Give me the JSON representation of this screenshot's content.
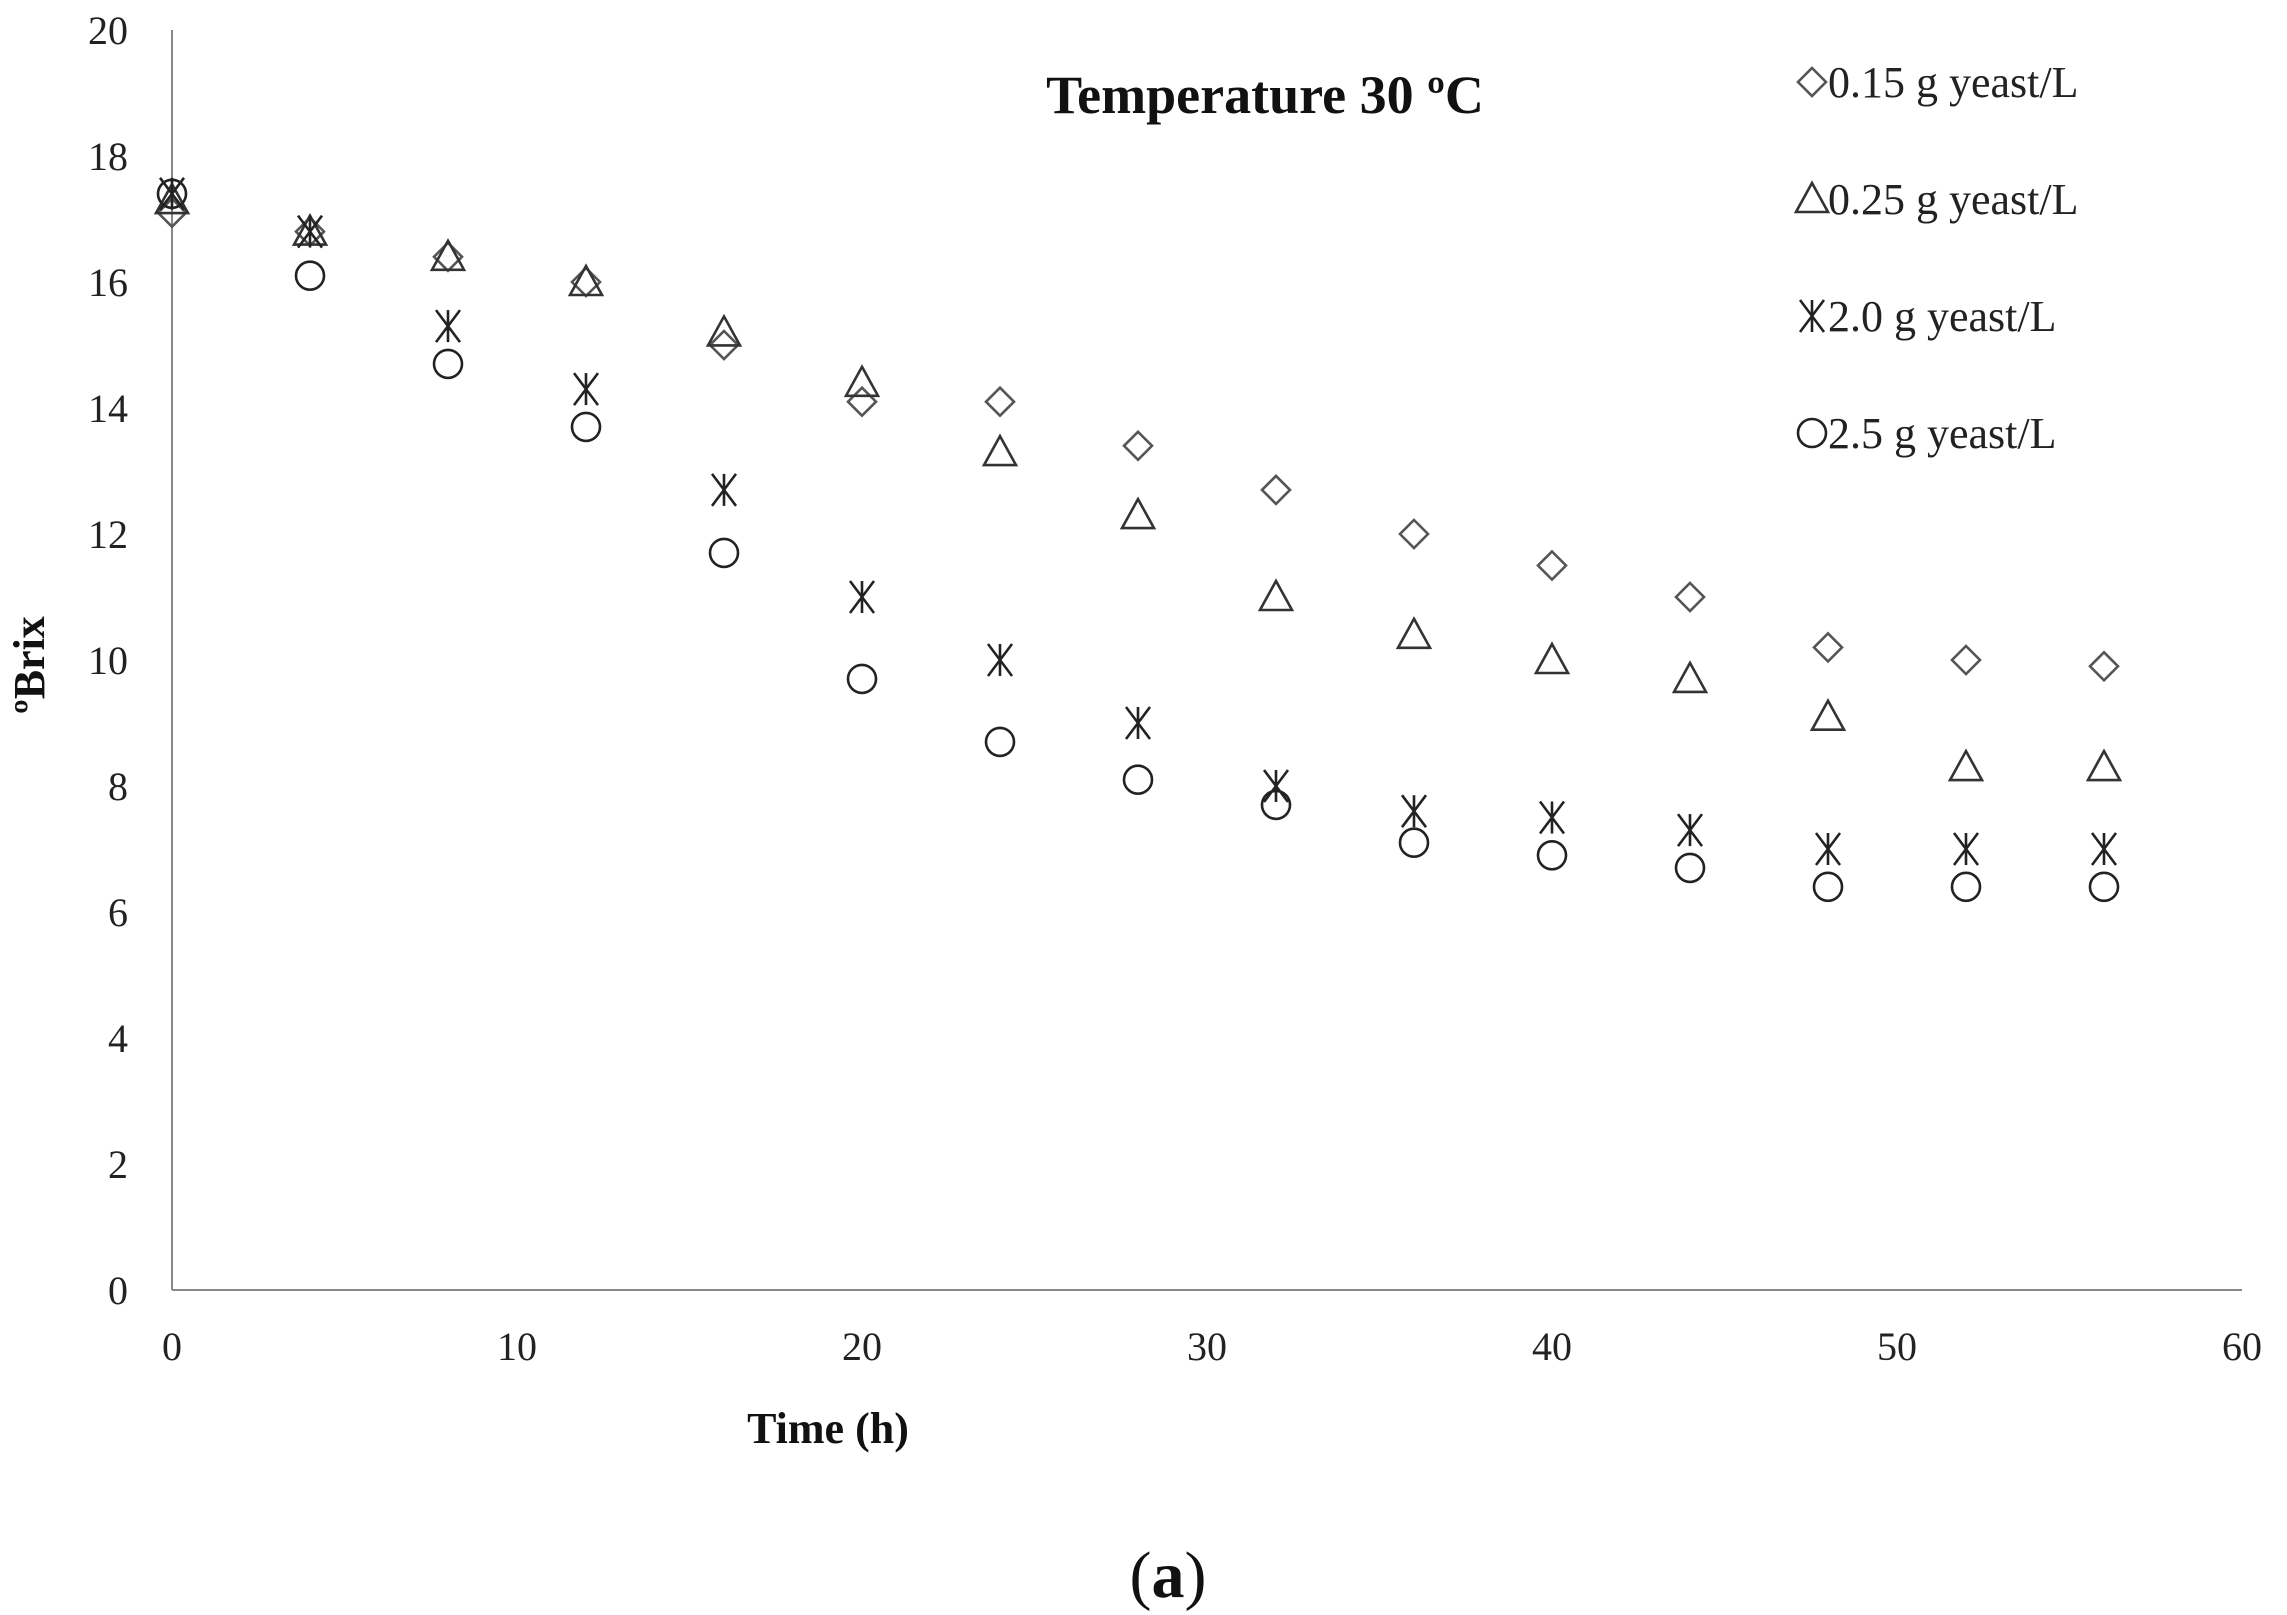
{
  "chart_data": {
    "type": "scatter",
    "title": "Temperature  30 ºC",
    "xlabel": "Time (h)",
    "ylabel": "ºBrix",
    "xlim": [
      0,
      60
    ],
    "ylim": [
      0,
      20
    ],
    "xticks": [
      0,
      10,
      20,
      30,
      40,
      50,
      60
    ],
    "yticks": [
      0,
      2,
      4,
      6,
      8,
      10,
      12,
      14,
      16,
      18,
      20
    ],
    "grid": false,
    "legend_position": "top-right",
    "x": [
      0,
      4,
      8,
      12,
      16,
      20,
      24,
      28,
      32,
      36,
      40,
      44,
      48,
      52,
      56
    ],
    "series": [
      {
        "name": "0.15 g yeast/L",
        "marker": "diamond",
        "color": "#555555",
        "values": [
          17.1,
          16.8,
          16.4,
          16.0,
          15.0,
          14.1,
          14.1,
          13.4,
          12.7,
          12.0,
          11.5,
          11.0,
          10.2,
          10.0,
          9.9
        ]
      },
      {
        "name": "0.25 g yeast/L",
        "marker": "triangle",
        "color": "#333333",
        "values": [
          17.3,
          16.8,
          16.4,
          16.0,
          15.2,
          14.4,
          13.3,
          12.3,
          11.0,
          10.4,
          10.0,
          9.7,
          9.1,
          8.3,
          8.3
        ]
      },
      {
        "name": "2.0 g yeast/L",
        "marker": "star",
        "color": "#222222",
        "values": [
          17.4,
          16.8,
          15.3,
          14.3,
          12.7,
          11.0,
          10.0,
          9.0,
          8.0,
          7.6,
          7.5,
          7.3,
          7.0,
          7.0,
          7.0
        ]
      },
      {
        "name": "2.5 g yeast/L",
        "marker": "circle",
        "color": "#222222",
        "values": [
          17.4,
          16.1,
          14.7,
          13.7,
          11.7,
          9.7,
          8.7,
          8.1,
          7.7,
          7.1,
          6.9,
          6.7,
          6.4,
          6.4,
          6.4
        ]
      }
    ]
  },
  "caption": {
    "open": "(",
    "letter": "a",
    "close": ")"
  }
}
